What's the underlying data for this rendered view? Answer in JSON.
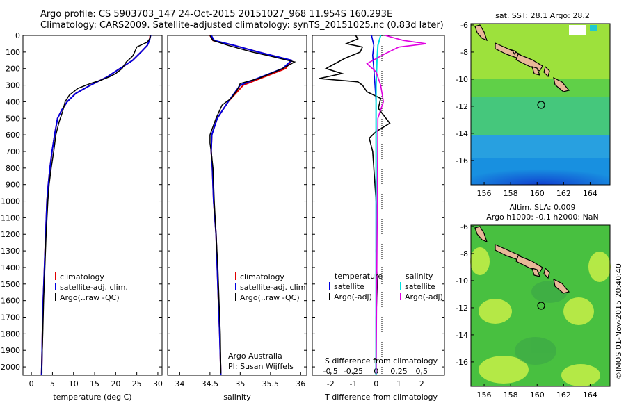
{
  "header": {
    "line1": "Argo profile: CS 5903703_147 24-Oct-2015 20151027_968 11.954S 160.293E",
    "line2": "Climatology: CARS2009. Satellite-adjusted climatology: synTS_20151025.nc (0.83d later)"
  },
  "colors": {
    "climatology": "#e00000",
    "satellite": "#0000e0",
    "argo": "#000000",
    "sal_satellite": "#00e0e0",
    "sal_argo": "#e000e0",
    "land": "#e8b898"
  },
  "depth_ticks": [
    "0",
    "100",
    "200",
    "300",
    "400",
    "500",
    "600",
    "700",
    "800",
    "900",
    "1000",
    "1100",
    "1200",
    "1300",
    "1400",
    "1500",
    "1600",
    "1700",
    "1800",
    "1900",
    "2000"
  ],
  "temp_panel": {
    "xlabel": "temperature (deg C)",
    "xticks": [
      "0",
      "5",
      "10",
      "15",
      "20",
      "25",
      "30"
    ],
    "legend": [
      "climatology",
      "satellite-adj. clim.",
      "Argo(..raw -QC)"
    ]
  },
  "sal_panel": {
    "xlabel": "salinity",
    "xticks": [
      "34",
      "34.5",
      "35",
      "35.5",
      "36"
    ],
    "legend": [
      "climatology",
      "satellite-adj. clim.",
      "Argo(..raw -QC)"
    ],
    "credit1": "Argo Australia",
    "credit2": "PI: Susan Wijffels"
  },
  "diff_panel": {
    "legend_t_head": "temperature",
    "legend_s_head": "salinity",
    "legend_t": [
      "satellite",
      "Argo(-adj)"
    ],
    "legend_s": [
      "satellite",
      "Argo(-adj)"
    ],
    "top_label": "S difference from climatology",
    "top_ticks": [
      "-0.5",
      "-0.25",
      "0",
      "0.25",
      "0.5"
    ],
    "bottom_ticks": [
      "-2",
      "-1",
      "0",
      "1",
      "2"
    ],
    "xlabel": "T difference from climatology"
  },
  "map_sst": {
    "title": "sat. SST: 28.1  Argo: 28.2",
    "yticks": [
      "-6",
      "-8",
      "-10",
      "-12",
      "-14",
      "-16"
    ],
    "xticks": [
      "156",
      "158",
      "160",
      "162",
      "164"
    ]
  },
  "map_sla": {
    "title1": "Altim. SLA: 0.009",
    "title2": "Argo h1000: -0.1 h2000: NaN",
    "yticks": [
      "-6",
      "-8",
      "-10",
      "-12",
      "-14",
      "-16"
    ],
    "xticks": [
      "156",
      "158",
      "160",
      "162",
      "164"
    ]
  },
  "footer_vertical": "©IMOS 01-Nov-2015 20:40:40",
  "chart_data": [
    {
      "type": "line",
      "title": "",
      "xlabel": "temperature (deg C)",
      "ylabel": "",
      "xlim": [
        -2,
        31
      ],
      "ylim": [
        2050,
        0
      ],
      "series": [
        {
          "name": "climatology",
          "points": [
            [
              28.2,
              0
            ],
            [
              28,
              30
            ],
            [
              27.5,
              60
            ],
            [
              26,
              100
            ],
            [
              24,
              150
            ],
            [
              21,
              200
            ],
            [
              18,
              250
            ],
            [
              14,
              300
            ],
            [
              10.5,
              350
            ],
            [
              8.5,
              400
            ],
            [
              7.2,
              450
            ],
            [
              6.2,
              500
            ],
            [
              5.5,
              600
            ],
            [
              4.9,
              700
            ],
            [
              4.4,
              800
            ],
            [
              4.0,
              900
            ],
            [
              3.7,
              1000
            ],
            [
              3.4,
              1200
            ],
            [
              3.1,
              1400
            ],
            [
              2.8,
              1600
            ],
            [
              2.6,
              1800
            ],
            [
              2.5,
              1950
            ],
            [
              2.4,
              2050
            ]
          ]
        },
        {
          "name": "satellite-adj. clim.",
          "points": [
            [
              28.3,
              0
            ],
            [
              28,
              30
            ],
            [
              27.5,
              60
            ],
            [
              26,
              100
            ],
            [
              24,
              150
            ],
            [
              21,
              200
            ],
            [
              18,
              250
            ],
            [
              14,
              300
            ],
            [
              10.5,
              350
            ],
            [
              8.5,
              400
            ],
            [
              7.2,
              450
            ],
            [
              6.2,
              500
            ],
            [
              5.5,
              600
            ],
            [
              4.9,
              700
            ],
            [
              4.4,
              800
            ],
            [
              4.0,
              900
            ],
            [
              3.7,
              1000
            ],
            [
              3.4,
              1200
            ],
            [
              3.1,
              1400
            ],
            [
              2.8,
              1600
            ],
            [
              2.6,
              1800
            ],
            [
              2.5,
              1950
            ],
            [
              2.4,
              2050
            ]
          ]
        },
        {
          "name": "Argo(..raw -QC)",
          "points": [
            [
              28.2,
              0
            ],
            [
              28.2,
              15
            ],
            [
              27.5,
              40
            ],
            [
              25,
              70
            ],
            [
              24.5,
              100
            ],
            [
              24,
              125
            ],
            [
              22.5,
              160
            ],
            [
              21.5,
              200
            ],
            [
              20,
              230
            ],
            [
              18.5,
              250
            ],
            [
              16.5,
              270
            ],
            [
              14,
              290
            ],
            [
              11,
              320
            ],
            [
              9,
              360
            ],
            [
              8,
              400
            ],
            [
              7.4,
              460
            ],
            [
              6.6,
              520
            ],
            [
              5.8,
              600
            ],
            [
              5.3,
              700
            ],
            [
              4.7,
              800
            ],
            [
              4.2,
              900
            ],
            [
              3.9,
              1000
            ],
            [
              3.5,
              1200
            ],
            [
              3.2,
              1400
            ],
            [
              2.9,
              1600
            ],
            [
              2.7,
              1800
            ],
            [
              2.5,
              1950
            ],
            [
              2.5,
              2040
            ]
          ]
        }
      ]
    },
    {
      "type": "line",
      "title": "",
      "xlabel": "salinity",
      "ylabel": "",
      "xlim": [
        33.8,
        36.1
      ],
      "ylim": [
        2050,
        0
      ],
      "series": [
        {
          "name": "climatology",
          "points": [
            [
              34.5,
              0
            ],
            [
              34.55,
              30
            ],
            [
              34.9,
              60
            ],
            [
              35.3,
              100
            ],
            [
              35.85,
              150
            ],
            [
              35.75,
              200
            ],
            [
              35.4,
              250
            ],
            [
              35.05,
              300
            ],
            [
              34.8,
              400
            ],
            [
              34.62,
              500
            ],
            [
              34.53,
              600
            ],
            [
              34.52,
              700
            ],
            [
              34.54,
              800
            ],
            [
              34.56,
              1000
            ],
            [
              34.6,
              1200
            ],
            [
              34.62,
              1400
            ],
            [
              34.64,
              1600
            ],
            [
              34.66,
              1800
            ],
            [
              34.68,
              2050
            ]
          ]
        },
        {
          "name": "satellite-adj. clim.",
          "points": [
            [
              34.52,
              0
            ],
            [
              34.57,
              30
            ],
            [
              34.9,
              60
            ],
            [
              35.3,
              100
            ],
            [
              35.85,
              150
            ],
            [
              35.7,
              200
            ],
            [
              35.35,
              250
            ],
            [
              35.0,
              300
            ],
            [
              34.8,
              400
            ],
            [
              34.62,
              500
            ],
            [
              34.53,
              600
            ],
            [
              34.52,
              700
            ],
            [
              34.54,
              800
            ],
            [
              34.56,
              1000
            ],
            [
              34.6,
              1200
            ],
            [
              34.62,
              1400
            ],
            [
              34.64,
              1600
            ],
            [
              34.66,
              1800
            ],
            [
              34.68,
              2050
            ]
          ]
        },
        {
          "name": "Argo(..raw -QC)",
          "points": [
            [
              34.5,
              0
            ],
            [
              34.55,
              30
            ],
            [
              34.8,
              60
            ],
            [
              35.2,
              100
            ],
            [
              35.5,
              125
            ],
            [
              35.9,
              160
            ],
            [
              35.7,
              200
            ],
            [
              35.5,
              230
            ],
            [
              35.3,
              260
            ],
            [
              35.0,
              290
            ],
            [
              34.95,
              330
            ],
            [
              34.85,
              380
            ],
            [
              34.7,
              420
            ],
            [
              34.6,
              500
            ],
            [
              34.5,
              600
            ],
            [
              34.5,
              650
            ],
            [
              34.52,
              700
            ],
            [
              34.55,
              800
            ],
            [
              34.57,
              1000
            ],
            [
              34.6,
              1200
            ],
            [
              34.63,
              1400
            ],
            [
              34.65,
              1600
            ],
            [
              34.67,
              1800
            ],
            [
              34.68,
              2040
            ]
          ]
        }
      ]
    },
    {
      "type": "line",
      "title": "",
      "xlabel": "T difference from climatology",
      "top_axis_label": "S difference from climatology",
      "xlim": [
        -2.8,
        3.0
      ],
      "top_xlim": [
        -0.7,
        0.75
      ],
      "ylim": [
        2050,
        0
      ],
      "series": [
        {
          "name": "temperature satellite",
          "axis": "T",
          "points": [
            [
              -0.2,
              0
            ],
            [
              -0.1,
              60
            ],
            [
              -0.15,
              120
            ],
            [
              -0.1,
              200
            ],
            [
              -0.05,
              300
            ],
            [
              0,
              400
            ],
            [
              0,
              2050
            ]
          ]
        },
        {
          "name": "temperature Argo(-adj)",
          "axis": "T",
          "points": [
            [
              -0.9,
              0
            ],
            [
              -0.8,
              20
            ],
            [
              -1.3,
              50
            ],
            [
              -0.6,
              70
            ],
            [
              -0.7,
              100
            ],
            [
              -1.4,
              140
            ],
            [
              -2.2,
              200
            ],
            [
              -1.5,
              230
            ],
            [
              -2.5,
              260
            ],
            [
              -0.8,
              280
            ],
            [
              -0.6,
              300
            ],
            [
              -0.4,
              340
            ],
            [
              0.2,
              380
            ],
            [
              0.1,
              440
            ],
            [
              0.6,
              530
            ],
            [
              0,
              580
            ],
            [
              -0.3,
              620
            ],
            [
              -0.15,
              700
            ],
            [
              -0.1,
              800
            ],
            [
              0,
              1000
            ],
            [
              0.05,
              1100
            ],
            [
              0,
              1300
            ],
            [
              0.05,
              1500
            ],
            [
              0,
              1700
            ],
            [
              0,
              2040
            ]
          ]
        },
        {
          "name": "salinity satellite",
          "axis": "S",
          "points": [
            [
              0.05,
              0
            ],
            [
              0.02,
              60
            ],
            [
              0.01,
              150
            ],
            [
              0,
              300
            ],
            [
              0,
              2050
            ]
          ]
        },
        {
          "name": "salinity Argo(-adj)",
          "axis": "S",
          "points": [
            [
              0.1,
              0
            ],
            [
              0.3,
              30
            ],
            [
              0.55,
              50
            ],
            [
              0.25,
              70
            ],
            [
              0.1,
              110
            ],
            [
              -0.1,
              170
            ],
            [
              0,
              220
            ],
            [
              0.05,
              300
            ],
            [
              0.08,
              400
            ],
            [
              0.02,
              500
            ],
            [
              0,
              2040
            ]
          ]
        }
      ]
    }
  ]
}
